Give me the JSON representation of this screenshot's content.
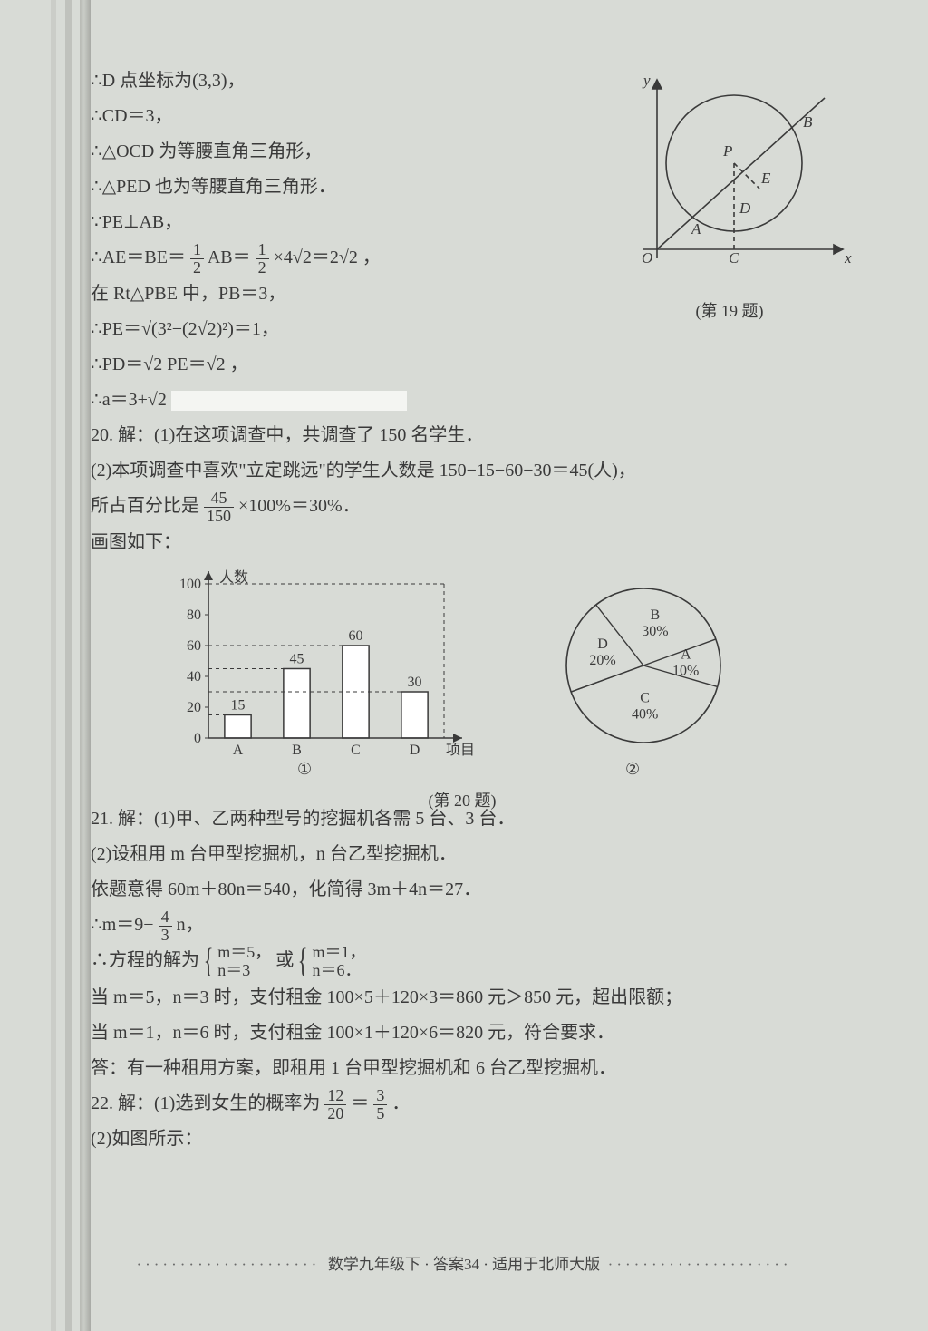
{
  "proof": {
    "l1": "∴D 点坐标为(3,3)，",
    "l2": "∴CD＝3，",
    "l3": "∴△OCD 为等腰直角三角形，",
    "l4": "∴△PED 也为等腰直角三角形．",
    "l5": "∵PE⊥AB，",
    "l6a": "∴AE＝BE＝",
    "l6frac1n": "1",
    "l6frac1d": "2",
    "l6b": "AB＝",
    "l6frac2n": "1",
    "l6frac2d": "2",
    "l6c": "×4√2＝2√2 ，",
    "l7": "在 Rt△PBE 中，PB＝3，",
    "l8": "∴PE＝√(3²−(2√2)²)＝1，",
    "l9": "∴PD＝√2 PE＝√2 ，",
    "l10": "∴a＝3+√2"
  },
  "fig19": {
    "caption": "(第 19 题)",
    "labels": {
      "x": "x",
      "y": "y",
      "O": "O",
      "A": "A",
      "B": "B",
      "C": "C",
      "D": "D",
      "E": "E",
      "P": "P"
    },
    "stroke": "#3a3a3a"
  },
  "q20": {
    "l1": "20. 解：(1)在这项调查中，共调查了 150 名学生．",
    "l2": "(2)本项调查中喜欢\"立定跳远\"的学生人数是 150−15−60−30＝45(人)，",
    "l3a": "所占百分比是",
    "fracN": "45",
    "fracD": "150",
    "l3b": "×100%＝30%．",
    "l4": "画图如下：",
    "caption": "(第 20 题)",
    "sub1": "①",
    "sub2": "②"
  },
  "barChart": {
    "type": "bar",
    "yLabel": "人数",
    "xLabel": "项目",
    "categories": [
      "A",
      "B",
      "C",
      "D"
    ],
    "values": [
      15,
      45,
      60,
      30
    ],
    "ylim": [
      0,
      100
    ],
    "ytick_step": 20,
    "bar_fill": "#ffffff",
    "bar_stroke": "#3a3a3a",
    "axis_color": "#3a3a3a",
    "grid_color": "#3a3a3a",
    "grid_dash": "4,4",
    "bar_width": 0.45,
    "label_fontsize": 16
  },
  "pieChart": {
    "type": "pie",
    "slices": [
      {
        "label": "A",
        "pct": 10,
        "text": "10%"
      },
      {
        "label": "B",
        "pct": 30,
        "text": "30%"
      },
      {
        "label": "C",
        "pct": 40,
        "text": "40%"
      },
      {
        "label": "D",
        "pct": 20,
        "text": "20%"
      }
    ],
    "stroke": "#3a3a3a",
    "fill": "none",
    "label_fontsize": 16
  },
  "q21": {
    "l1": "21. 解：(1)甲、乙两种型号的挖掘机各需 5 台、3 台．",
    "l2": "(2)设租用 m 台甲型挖掘机，n 台乙型挖掘机．",
    "l3": "依题意得 60m＋80n＝540，化简得 3m＋4n＝27．",
    "l4a": "∴m＝9−",
    "fracN": "4",
    "fracD": "3",
    "l4b": "n，",
    "l5a": "∴方程的解为",
    "sys1a": "m＝5，",
    "sys1b": "n＝3",
    "l5b": " 或 ",
    "sys2a": "m＝1，",
    "sys2b": "n＝6．",
    "l6": "当 m＝5，n＝3 时，支付租金 100×5＋120×3＝860 元＞850 元，超出限额；",
    "l7": "当 m＝1，n＝6 时，支付租金 100×1＋120×6＝820 元，符合要求．",
    "l8": "答：有一种租用方案，即租用 1 台甲型挖掘机和 6 台乙型挖掘机．"
  },
  "q22": {
    "l1a": "22. 解：(1)选到女生的概率为",
    "f1n": "12",
    "f1d": "20",
    "eq": "＝",
    "f2n": "3",
    "f2d": "5",
    "end": "．",
    "l2": "(2)如图所示："
  },
  "footer": {
    "text": "数学九年级下 · 答案34 · 适用于北师大版",
    "dots": "·····················"
  }
}
